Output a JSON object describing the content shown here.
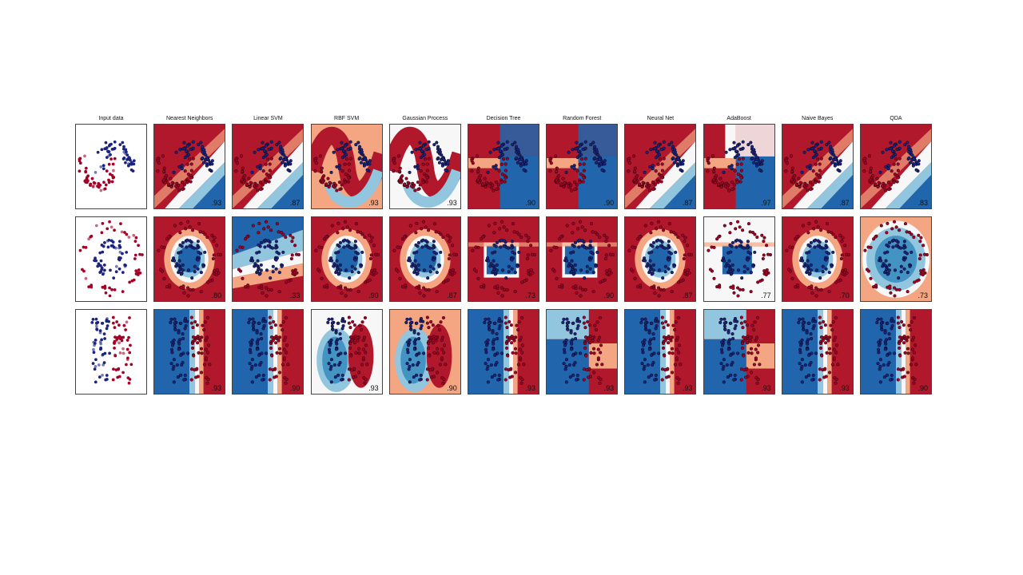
{
  "chart_data": {
    "type": "scatter",
    "title": "",
    "columns": [
      "Input data",
      "Nearest Neighbors",
      "Linear SVM",
      "RBF SVM",
      "Gaussian Process",
      "Decision Tree",
      "Random Forest",
      "Neural Net",
      "AdaBoost",
      "Naive Bayes",
      "QDA"
    ],
    "rows": [
      {
        "dataset": "moons",
        "scores": [
          "",
          ".93",
          ".87",
          ".93",
          ".93",
          ".90",
          ".90",
          ".87",
          ".97",
          ".87",
          ".83"
        ]
      },
      {
        "dataset": "circles",
        "scores": [
          "",
          ".80",
          ".33",
          ".90",
          ".87",
          ".73",
          ".90",
          ".87",
          ".77",
          ".70",
          ".73"
        ]
      },
      {
        "dataset": "linear",
        "scores": [
          "",
          ".93",
          ".90",
          ".93",
          ".90",
          ".93",
          ".93",
          ".93",
          ".93",
          ".93",
          ".90"
        ]
      }
    ],
    "class_colors": {
      "class_0": "#a50026",
      "class_1": "#1a237e"
    },
    "background_colors": {
      "red": "#b2182b",
      "light_red": "#f4a582",
      "white": "#f7f7f7",
      "light_blue": "#92c5de",
      "blue": "#2166ac"
    },
    "grid": false
  }
}
